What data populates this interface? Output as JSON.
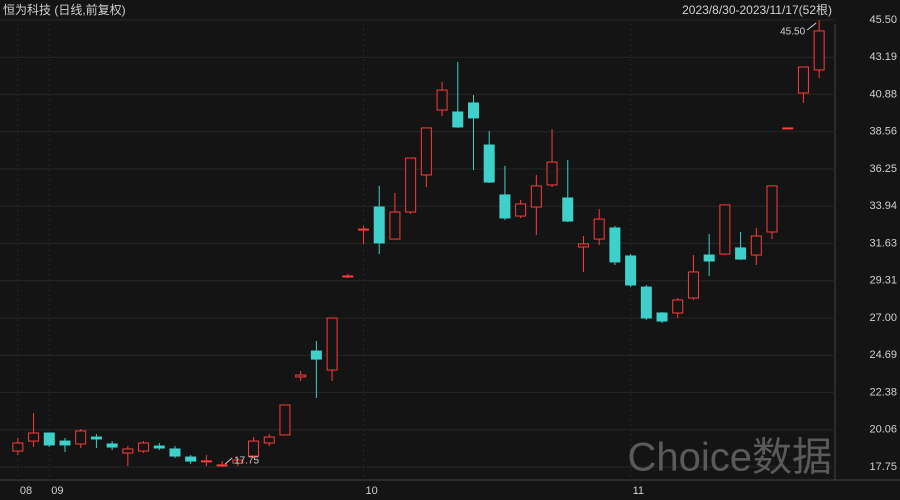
{
  "chart_data": {
    "type": "candlestick",
    "title": "恒为科技 (日线,前复权)",
    "range_label": "2023/8/30-2023/11/17(52根)",
    "watermark": "Choice数据",
    "categories": [
      "08",
      null,
      "09",
      null,
      null,
      null,
      null,
      null,
      null,
      null,
      null,
      null,
      null,
      null,
      null,
      null,
      null,
      null,
      null,
      null,
      null,
      null,
      "10",
      null,
      null,
      null,
      null,
      null,
      null,
      null,
      null,
      null,
      null,
      null,
      null,
      null,
      null,
      null,
      null,
      "11",
      null,
      null,
      null,
      null,
      null,
      null,
      null,
      null,
      null,
      null,
      null,
      null
    ],
    "open": [
      18.74,
      19.36,
      19.86,
      19.36,
      19.18,
      19.61,
      19.18,
      18.62,
      18.74,
      19.05,
      18.87,
      18.37,
      18.12,
      17.87,
      17.99,
      18.43,
      19.24,
      19.74,
      23.34,
      24.95,
      23.77,
      29.56,
      32.46,
      33.89,
      31.9,
      33.58,
      35.88,
      39.91,
      39.79,
      40.35,
      37.74,
      34.64,
      33.33,
      33.89,
      35.26,
      34.45,
      31.41,
      31.9,
      32.59,
      30.85,
      28.92,
      27.31,
      27.31,
      28.24,
      30.91,
      30.97,
      31.35,
      30.91,
      32.34,
      38.79,
      40.97,
      42.4
    ],
    "high": [
      19.55,
      21.1,
      19.86,
      19.55,
      20.11,
      19.8,
      19.36,
      19.05,
      19.36,
      19.24,
      19.05,
      18.49,
      18.49,
      18.12,
      18.3,
      19.61,
      19.8,
      21.6,
      23.71,
      25.57,
      27.0,
      29.73,
      32.71,
      35.2,
      34.76,
      36.93,
      38.8,
      41.65,
      42.89,
      40.84,
      38.61,
      36.44,
      34.33,
      35.88,
      38.73,
      36.81,
      32.09,
      33.77,
      32.71,
      30.97,
      29.05,
      27.37,
      28.24,
      30.91,
      32.21,
      34.02,
      32.34,
      32.59,
      35.2,
      38.8,
      42.58,
      45.5
    ],
    "low": [
      18.49,
      18.99,
      18.99,
      18.68,
      18.93,
      18.93,
      18.8,
      17.81,
      18.62,
      18.8,
      18.31,
      17.94,
      17.81,
      17.75,
      17.8,
      18.31,
      19.05,
      19.74,
      23.09,
      22.03,
      23.09,
      29.48,
      31.6,
      30.97,
      31.9,
      33.46,
      35.13,
      39.54,
      38.8,
      36.19,
      35.38,
      33.08,
      33.21,
      32.15,
      35.13,
      32.96,
      29.86,
      31.53,
      30.29,
      28.92,
      26.88,
      26.69,
      27.0,
      28.12,
      29.61,
      30.91,
      30.6,
      30.29,
      31.9,
      38.79,
      40.35,
      41.9
    ],
    "close": [
      19.24,
      19.86,
      19.12,
      19.12,
      19.99,
      19.49,
      18.99,
      18.87,
      19.24,
      18.93,
      18.43,
      18.12,
      18.13,
      17.88,
      18.18,
      19.36,
      19.61,
      21.6,
      23.46,
      24.45,
      27.0,
      29.61,
      32.52,
      31.66,
      33.58,
      36.93,
      38.8,
      41.15,
      38.86,
      39.42,
      35.44,
      33.21,
      34.08,
      35.2,
      36.68,
      33.02,
      31.6,
      33.14,
      30.48,
      29.05,
      27.0,
      26.81,
      28.12,
      29.86,
      30.54,
      34.02,
      30.66,
      32.09,
      35.2,
      38.8,
      42.58,
      44.82
    ],
    "up_color": "#ff3b3b",
    "down_color": "#3fd0cb",
    "ylim": [
      17.75,
      45.5
    ],
    "yticks": [
      17.75,
      20.06,
      22.38,
      24.69,
      {
        "value": 27,
        "label": "27.00"
      },
      29.31,
      31.63,
      33.94,
      36.25,
      38.56,
      40.88,
      43.19,
      {
        "value": 45.5,
        "label": "45.50"
      }
    ],
    "max_marker": {
      "value": 45.5,
      "label": "45.50"
    },
    "min_marker": {
      "value": 17.75,
      "label": "17.75"
    },
    "grid": true
  }
}
